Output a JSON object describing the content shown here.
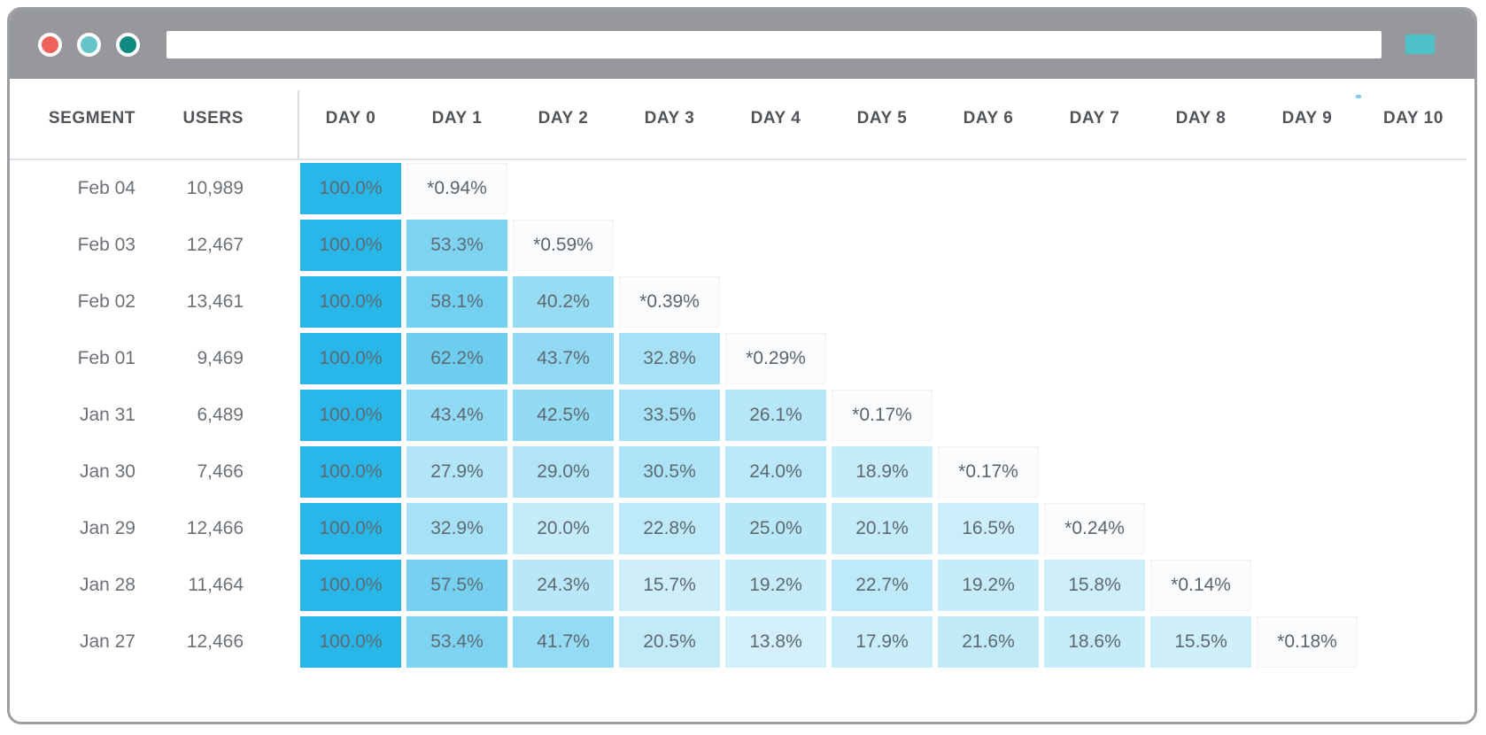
{
  "browser": {
    "traffic_light_colors": [
      "#ef625c",
      "#66c5cb",
      "#108a7e"
    ],
    "url_value": "",
    "action_button_color": "#4ec0c7"
  },
  "accent": {
    "cell_base_color": "#29b6e8",
    "estimate_cell_color": "#fbfcfd"
  },
  "chart_data": {
    "type": "heatmap",
    "headers": {
      "segment": "SEGMENT",
      "users": "USERS",
      "days": [
        "DAY 0",
        "DAY 1",
        "DAY 2",
        "DAY 3",
        "DAY 4",
        "DAY 5",
        "DAY 6",
        "DAY 7",
        "DAY 8",
        "DAY 9",
        "DAY 10"
      ]
    },
    "rows": [
      {
        "segment": "Feb 04",
        "users_label": "10,989",
        "users": 10989,
        "cells": [
          {
            "label": "100.0%",
            "value": 100.0
          },
          {
            "label": "*0.94%",
            "value": 0.94,
            "estimate": true
          }
        ]
      },
      {
        "segment": "Feb 03",
        "users_label": "12,467",
        "users": 12467,
        "cells": [
          {
            "label": "100.0%",
            "value": 100.0
          },
          {
            "label": "53.3%",
            "value": 53.3
          },
          {
            "label": "*0.59%",
            "value": 0.59,
            "estimate": true
          }
        ]
      },
      {
        "segment": "Feb 02",
        "users_label": "13,461",
        "users": 13461,
        "cells": [
          {
            "label": "100.0%",
            "value": 100.0
          },
          {
            "label": "58.1%",
            "value": 58.1
          },
          {
            "label": "40.2%",
            "value": 40.2
          },
          {
            "label": "*0.39%",
            "value": 0.39,
            "estimate": true
          }
        ]
      },
      {
        "segment": "Feb 01",
        "users_label": "9,469",
        "users": 9469,
        "cells": [
          {
            "label": "100.0%",
            "value": 100.0
          },
          {
            "label": "62.2%",
            "value": 62.2
          },
          {
            "label": "43.7%",
            "value": 43.7
          },
          {
            "label": "32.8%",
            "value": 32.8
          },
          {
            "label": "*0.29%",
            "value": 0.29,
            "estimate": true
          }
        ]
      },
      {
        "segment": "Jan 31",
        "users_label": "6,489",
        "users": 6489,
        "cells": [
          {
            "label": "100.0%",
            "value": 100.0
          },
          {
            "label": "43.4%",
            "value": 43.4
          },
          {
            "label": "42.5%",
            "value": 42.5
          },
          {
            "label": "33.5%",
            "value": 33.5
          },
          {
            "label": "26.1%",
            "value": 26.1
          },
          {
            "label": "*0.17%",
            "value": 0.17,
            "estimate": true
          }
        ]
      },
      {
        "segment": "Jan 30",
        "users_label": "7,466",
        "users": 7466,
        "cells": [
          {
            "label": "100.0%",
            "value": 100.0
          },
          {
            "label": "27.9%",
            "value": 27.9
          },
          {
            "label": "29.0%",
            "value": 29.0
          },
          {
            "label": "30.5%",
            "value": 30.5
          },
          {
            "label": "24.0%",
            "value": 24.0
          },
          {
            "label": "18.9%",
            "value": 18.9
          },
          {
            "label": "*0.17%",
            "value": 0.17,
            "estimate": true
          }
        ]
      },
      {
        "segment": "Jan 29",
        "users_label": "12,466",
        "users": 12466,
        "cells": [
          {
            "label": "100.0%",
            "value": 100.0
          },
          {
            "label": "32.9%",
            "value": 32.9
          },
          {
            "label": "20.0%",
            "value": 20.0
          },
          {
            "label": "22.8%",
            "value": 22.8
          },
          {
            "label": "25.0%",
            "value": 25.0
          },
          {
            "label": "20.1%",
            "value": 20.1
          },
          {
            "label": "16.5%",
            "value": 16.5
          },
          {
            "label": "*0.24%",
            "value": 0.24,
            "estimate": true
          }
        ]
      },
      {
        "segment": "Jan 28",
        "users_label": "11,464",
        "users": 11464,
        "cells": [
          {
            "label": "100.0%",
            "value": 100.0
          },
          {
            "label": "57.5%",
            "value": 57.5
          },
          {
            "label": "24.3%",
            "value": 24.3
          },
          {
            "label": "15.7%",
            "value": 15.7
          },
          {
            "label": "19.2%",
            "value": 19.2
          },
          {
            "label": "22.7%",
            "value": 22.7
          },
          {
            "label": "19.2%",
            "value": 19.2
          },
          {
            "label": "15.8%",
            "value": 15.8
          },
          {
            "label": "*0.14%",
            "value": 0.14,
            "estimate": true
          }
        ]
      },
      {
        "segment": "Jan 27",
        "users_label": "12,466",
        "users": 12466,
        "cells": [
          {
            "label": "100.0%",
            "value": 100.0
          },
          {
            "label": "53.4%",
            "value": 53.4
          },
          {
            "label": "41.7%",
            "value": 41.7
          },
          {
            "label": "20.5%",
            "value": 20.5
          },
          {
            "label": "13.8%",
            "value": 13.8
          },
          {
            "label": "17.9%",
            "value": 17.9
          },
          {
            "label": "21.6%",
            "value": 21.6
          },
          {
            "label": "18.6%",
            "value": 18.6
          },
          {
            "label": "15.5%",
            "value": 15.5
          },
          {
            "label": "*0.18%",
            "value": 0.18,
            "estimate": true
          }
        ]
      }
    ]
  }
}
